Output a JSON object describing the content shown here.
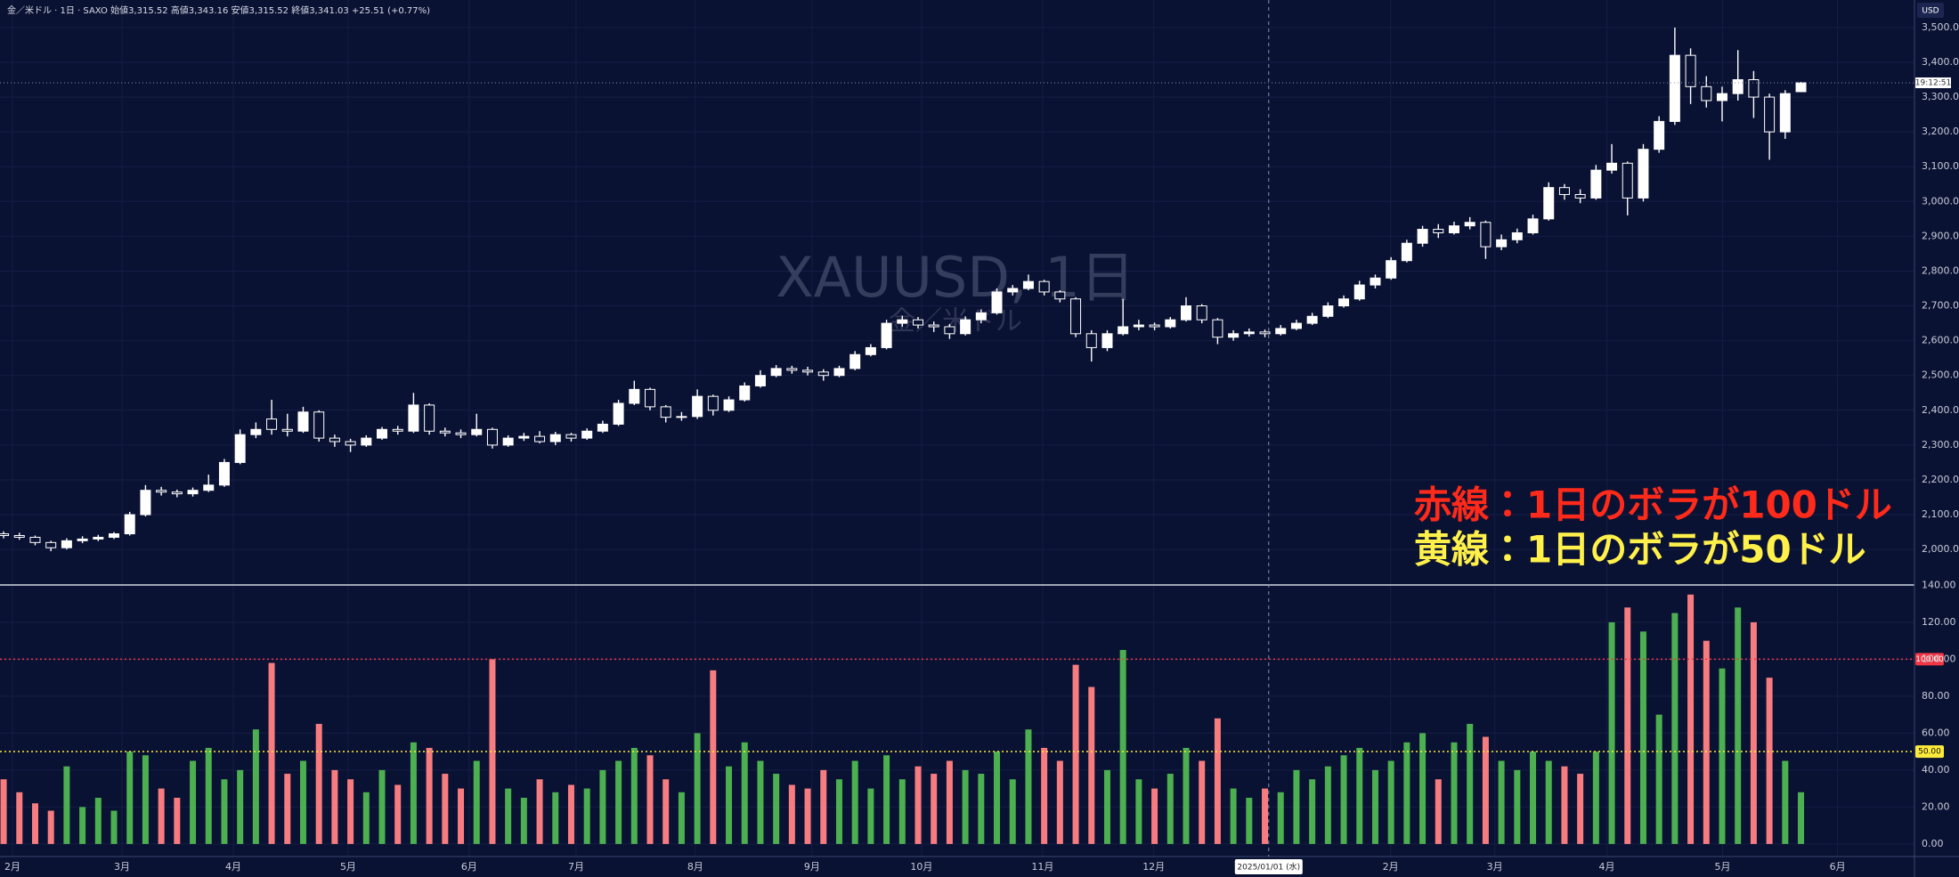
{
  "chart_data": [
    {
      "type": "candlestick",
      "title": "金／米ドル · 1日 · SAXO  始値3,315.52  高値3,343.16  安値3,315.52  終値3,341.03  +25.51 (+0.77%)",
      "watermark": [
        "XAUUSD, 1日",
        "金／米ドル"
      ],
      "currency": "USD",
      "up_color": "#ffffff",
      "down_color": "#0a1233",
      "xlim": [
        -0.23,
        121.2
      ],
      "xticks": [
        {
          "value": 0.56,
          "label": "2月"
        },
        {
          "value": 7.51,
          "label": "3月"
        },
        {
          "value": 14.57,
          "label": "4月"
        },
        {
          "value": 21.85,
          "label": "5月"
        },
        {
          "value": 29.53,
          "label": "6月"
        },
        {
          "value": 36.31,
          "label": "7月"
        },
        {
          "value": 43.87,
          "label": "8月"
        },
        {
          "value": 51.27,
          "label": "9月"
        },
        {
          "value": 58.22,
          "label": "10月"
        },
        {
          "value": 65.9,
          "label": "11月"
        },
        {
          "value": 72.95,
          "label": "12月"
        },
        {
          "value": 87.97,
          "label": "2月"
        },
        {
          "value": 94.58,
          "label": "3月"
        },
        {
          "value": 101.69,
          "label": "4月"
        },
        {
          "value": 109.03,
          "label": "5月"
        },
        {
          "value": 116.32,
          "label": "6月"
        }
      ],
      "crosshair": {
        "value": 80.24,
        "label": "2025/01/01 (水)"
      },
      "ylim": [
        1898,
        3579
      ],
      "yticks": [
        {
          "value": 2000,
          "label": "2,000.00"
        },
        {
          "value": 2100,
          "label": "2,100.00"
        },
        {
          "value": 2200,
          "label": "2,200.00"
        },
        {
          "value": 2300,
          "label": "2,300.00"
        },
        {
          "value": 2400,
          "label": "2,400.00"
        },
        {
          "value": 2500,
          "label": "2,500.00"
        },
        {
          "value": 2600,
          "label": "2,600.00"
        },
        {
          "value": 2700,
          "label": "2,700.00"
        },
        {
          "value": 2800,
          "label": "2,800.00"
        },
        {
          "value": 2900,
          "label": "2,900.00"
        },
        {
          "value": 3000,
          "label": "3,000.00"
        },
        {
          "value": 3100,
          "label": "3,100.00"
        },
        {
          "value": 3200,
          "label": "3,200.00"
        },
        {
          "value": 3300,
          "label": "3,300.00"
        },
        {
          "value": 3400,
          "label": "3,400.00"
        },
        {
          "value": 3500,
          "label": "3,500.00"
        }
      ],
      "price_line": 3341.03,
      "countdown": "19:12:51",
      "annotations": [
        {
          "text": "赤線：1日のボラが100ドル",
          "color": "#ff2a1a"
        },
        {
          "text": "黄線：1日のボラが50ドル",
          "color": "#fff04a"
        }
      ],
      "candles": [
        [
          2045,
          2052,
          2032,
          2040
        ],
        [
          2040,
          2048,
          2028,
          2035
        ],
        [
          2035,
          2040,
          2012,
          2020
        ],
        [
          2020,
          2025,
          1995,
          2005
        ],
        [
          2005,
          2032,
          2000,
          2025
        ],
        [
          2025,
          2038,
          2018,
          2030
        ],
        [
          2030,
          2042,
          2024,
          2035
        ],
        [
          2035,
          2050,
          2030,
          2045
        ],
        [
          2045,
          2108,
          2040,
          2100
        ],
        [
          2100,
          2185,
          2095,
          2170
        ],
        [
          2170,
          2180,
          2155,
          2165
        ],
        [
          2165,
          2172,
          2150,
          2160
        ],
        [
          2160,
          2178,
          2152,
          2170
        ],
        [
          2170,
          2215,
          2165,
          2185
        ],
        [
          2185,
          2260,
          2180,
          2250
        ],
        [
          2250,
          2345,
          2245,
          2330
        ],
        [
          2330,
          2365,
          2320,
          2345
        ],
        [
          2375,
          2430,
          2330,
          2345
        ],
        [
          2345,
          2390,
          2325,
          2340
        ],
        [
          2340,
          2410,
          2335,
          2395
        ],
        [
          2395,
          2400,
          2310,
          2320
        ],
        [
          2320,
          2330,
          2295,
          2310
        ],
        [
          2310,
          2318,
          2280,
          2300
        ],
        [
          2300,
          2328,
          2295,
          2320
        ],
        [
          2320,
          2352,
          2315,
          2345
        ],
        [
          2345,
          2355,
          2330,
          2340
        ],
        [
          2340,
          2450,
          2335,
          2415
        ],
        [
          2415,
          2420,
          2330,
          2340
        ],
        [
          2340,
          2350,
          2325,
          2335
        ],
        [
          2335,
          2345,
          2320,
          2330
        ],
        [
          2330,
          2390,
          2325,
          2345
        ],
        [
          2345,
          2350,
          2290,
          2300
        ],
        [
          2300,
          2328,
          2295,
          2320
        ],
        [
          2320,
          2335,
          2312,
          2325
        ],
        [
          2325,
          2340,
          2305,
          2310
        ],
        [
          2310,
          2338,
          2300,
          2330
        ],
        [
          2330,
          2335,
          2310,
          2320
        ],
        [
          2320,
          2348,
          2315,
          2340
        ],
        [
          2340,
          2370,
          2335,
          2360
        ],
        [
          2360,
          2430,
          2355,
          2420
        ],
        [
          2420,
          2485,
          2415,
          2460
        ],
        [
          2460,
          2465,
          2400,
          2410
        ],
        [
          2410,
          2415,
          2365,
          2380
        ],
        [
          2380,
          2395,
          2370,
          2382
        ],
        [
          2382,
          2460,
          2375,
          2440
        ],
        [
          2440,
          2445,
          2385,
          2400
        ],
        [
          2400,
          2440,
          2395,
          2430
        ],
        [
          2430,
          2480,
          2425,
          2470
        ],
        [
          2470,
          2515,
          2465,
          2500
        ],
        [
          2500,
          2530,
          2495,
          2520
        ],
        [
          2520,
          2528,
          2505,
          2515
        ],
        [
          2515,
          2525,
          2500,
          2510
        ],
        [
          2510,
          2518,
          2485,
          2500
        ],
        [
          2500,
          2528,
          2495,
          2520
        ],
        [
          2520,
          2570,
          2515,
          2560
        ],
        [
          2560,
          2590,
          2555,
          2580
        ],
        [
          2580,
          2660,
          2575,
          2650
        ],
        [
          2650,
          2672,
          2640,
          2660
        ],
        [
          2660,
          2668,
          2635,
          2645
        ],
        [
          2645,
          2655,
          2625,
          2640
        ],
        [
          2640,
          2648,
          2605,
          2620
        ],
        [
          2620,
          2670,
          2615,
          2660
        ],
        [
          2660,
          2690,
          2650,
          2680
        ],
        [
          2680,
          2750,
          2675,
          2740
        ],
        [
          2740,
          2760,
          2730,
          2750
        ],
        [
          2750,
          2790,
          2745,
          2770
        ],
        [
          2770,
          2775,
          2730,
          2740
        ],
        [
          2740,
          2745,
          2710,
          2720
        ],
        [
          2720,
          2725,
          2610,
          2620
        ],
        [
          2620,
          2630,
          2540,
          2580
        ],
        [
          2580,
          2630,
          2570,
          2620
        ],
        [
          2620,
          2720,
          2615,
          2640
        ],
        [
          2640,
          2660,
          2630,
          2645
        ],
        [
          2645,
          2652,
          2630,
          2640
        ],
        [
          2640,
          2668,
          2635,
          2660
        ],
        [
          2660,
          2725,
          2655,
          2700
        ],
        [
          2700,
          2705,
          2650,
          2660
        ],
        [
          2660,
          2665,
          2590,
          2610
        ],
        [
          2610,
          2630,
          2600,
          2620
        ],
        [
          2620,
          2635,
          2612,
          2625
        ],
        [
          2625,
          2632,
          2610,
          2620
        ],
        [
          2620,
          2645,
          2615,
          2635
        ],
        [
          2635,
          2660,
          2630,
          2650
        ],
        [
          2650,
          2680,
          2645,
          2670
        ],
        [
          2670,
          2710,
          2665,
          2700
        ],
        [
          2700,
          2730,
          2695,
          2720
        ],
        [
          2720,
          2772,
          2715,
          2760
        ],
        [
          2760,
          2790,
          2750,
          2780
        ],
        [
          2780,
          2840,
          2775,
          2830
        ],
        [
          2830,
          2890,
          2825,
          2880
        ],
        [
          2880,
          2930,
          2870,
          2920
        ],
        [
          2920,
          2935,
          2895,
          2910
        ],
        [
          2910,
          2942,
          2905,
          2930
        ],
        [
          2930,
          2955,
          2920,
          2940
        ],
        [
          2940,
          2945,
          2835,
          2870
        ],
        [
          2870,
          2905,
          2860,
          2890
        ],
        [
          2890,
          2922,
          2880,
          2910
        ],
        [
          2910,
          2962,
          2905,
          2950
        ],
        [
          2950,
          3055,
          2945,
          3040
        ],
        [
          3040,
          3050,
          3005,
          3020
        ],
        [
          3020,
          3035,
          2995,
          3010
        ],
        [
          3010,
          3105,
          3005,
          3090
        ],
        [
          3090,
          3165,
          3080,
          3110
        ],
        [
          3110,
          3115,
          2960,
          3010
        ],
        [
          3010,
          3165,
          3000,
          3150
        ],
        [
          3150,
          3245,
          3140,
          3230
        ],
        [
          3230,
          3500,
          3220,
          3420
        ],
        [
          3420,
          3440,
          3280,
          3330
        ],
        [
          3330,
          3360,
          3270,
          3290
        ],
        [
          3290,
          3330,
          3230,
          3310
        ],
        [
          3310,
          3435,
          3290,
          3350
        ],
        [
          3350,
          3375,
          3240,
          3300
        ],
        [
          3300,
          3310,
          3120,
          3200
        ],
        [
          3200,
          3320,
          3180,
          3310
        ],
        [
          3315.52,
          3343.16,
          3315.52,
          3341.03
        ]
      ]
    },
    {
      "type": "bar",
      "up_color": "#4caf50",
      "down_color": "#f77c80",
      "ylim": [
        -6.8,
        140.2
      ],
      "yticks": [
        {
          "value": 0,
          "label": "0.00"
        },
        {
          "value": 20,
          "label": "20.00"
        },
        {
          "value": 40,
          "label": "40.00"
        },
        {
          "value": 60,
          "label": "60.00"
        },
        {
          "value": 80,
          "label": "80.00"
        },
        {
          "value": 100,
          "label": "100.00"
        },
        {
          "value": 120,
          "label": "120.00"
        },
        {
          "value": 140,
          "label": "140.00"
        }
      ],
      "hlines": [
        {
          "value": 100,
          "label": "100.00",
          "color": "#f23645"
        },
        {
          "value": 50,
          "label": "50.00",
          "color": "#ffeb3b"
        }
      ],
      "values": [
        35,
        28,
        22,
        18,
        42,
        20,
        25,
        18,
        50,
        48,
        30,
        25,
        45,
        52,
        35,
        40,
        62,
        98,
        38,
        45,
        65,
        40,
        35,
        28,
        40,
        32,
        55,
        52,
        38,
        30,
        45,
        100,
        30,
        25,
        35,
        28,
        32,
        30,
        40,
        45,
        52,
        48,
        35,
        28,
        60,
        94,
        42,
        55,
        45,
        38,
        32,
        30,
        40,
        35,
        45,
        30,
        48,
        35,
        42,
        38,
        45,
        40,
        38,
        50,
        35,
        62,
        52,
        45,
        97,
        85,
        40,
        105,
        35,
        30,
        38,
        52,
        45,
        68,
        30,
        25,
        30,
        28,
        40,
        35,
        42,
        48,
        52,
        40,
        45,
        55,
        60,
        35,
        55,
        65,
        58,
        45,
        40,
        50,
        45,
        42,
        38,
        50,
        120,
        128,
        115,
        70,
        125,
        135,
        110,
        95,
        128,
        120,
        90,
        45,
        28
      ]
    }
  ]
}
